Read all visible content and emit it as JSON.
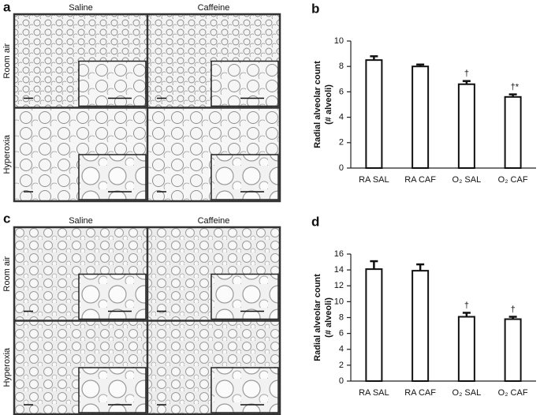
{
  "panels": [
    "a",
    "b",
    "c",
    "d"
  ],
  "micrographs": [
    {
      "columns": [
        "Saline",
        "Caffeine"
      ],
      "rows": [
        "Room air",
        "Hyperoxia"
      ]
    },
    {
      "columns": [
        "Saline",
        "Caffeine"
      ],
      "rows": [
        "Room air",
        "Hyperoxia"
      ]
    }
  ],
  "chart_data": [
    {
      "type": "bar",
      "ylabel": [
        "Radial alveolar count",
        "(# alveoli)"
      ],
      "categories": [
        "RA SAL",
        "RA CAF",
        "O₂ SAL",
        "O₂ CAF"
      ],
      "values": [
        8.5,
        8.0,
        6.6,
        5.6
      ],
      "errors": [
        0.3,
        0.15,
        0.25,
        0.2
      ],
      "annotations": [
        null,
        null,
        "†",
        "†*"
      ],
      "color": "#ffffff",
      "ylim": [
        0,
        10
      ],
      "yticks": [
        0,
        2,
        4,
        6,
        8,
        10
      ]
    },
    {
      "type": "bar",
      "ylabel": [
        "Radial alveolar count",
        "(# alveoli)"
      ],
      "categories": [
        "RA SAL",
        "RA CAF",
        "O₂ SAL",
        "O₂ CAF"
      ],
      "values": [
        14.1,
        13.9,
        8.1,
        7.8
      ],
      "errors": [
        1.0,
        0.8,
        0.5,
        0.3
      ],
      "annotations": [
        null,
        null,
        "†",
        "†"
      ],
      "color": "#ffffff",
      "ylim": [
        0,
        16
      ],
      "yticks": [
        0,
        2,
        4,
        6,
        8,
        10,
        12,
        14,
        16
      ]
    }
  ]
}
